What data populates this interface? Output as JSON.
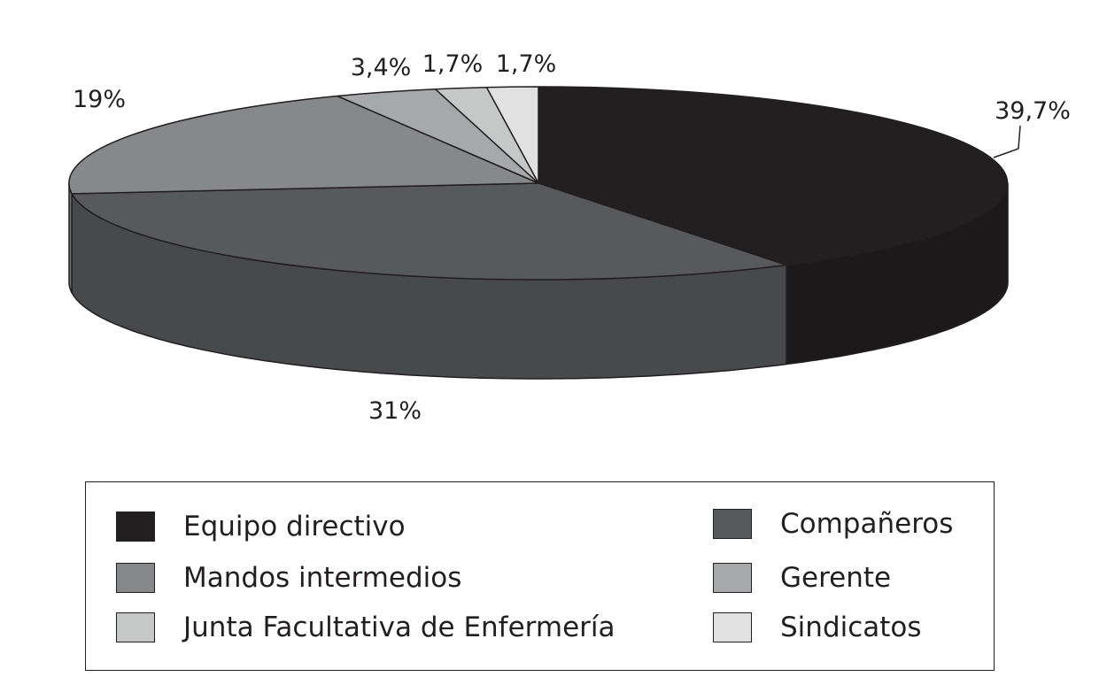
{
  "chart_data": {
    "type": "pie",
    "three_d": true,
    "unit": "%",
    "slices": [
      {
        "label": "Equipo directivo",
        "value": 39.7,
        "value_label": "39,7%",
        "color": "#221f20"
      },
      {
        "label": "Compañeros",
        "value": 31,
        "value_label": "31%",
        "color": "#58595b"
      },
      {
        "label": "Mandos intermedios",
        "value": 19,
        "value_label": "19%",
        "color": "#87888a"
      },
      {
        "label": "Gerente",
        "value": 3.4,
        "value_label": "3,4%",
        "color": "#a7a8aa"
      },
      {
        "label": "Junta Facultativa de Enfermería",
        "value": 1.7,
        "value_label": "1,7%",
        "color": "#c6c8c8"
      },
      {
        "label": "Sindicatos",
        "value": 1.7,
        "value_label": "1,7%",
        "color": "#e1e1e1"
      }
    ],
    "legend": {
      "placement": "bottom",
      "entries": [
        {
          "label": "Equipo directivo",
          "color": "#221f20"
        },
        {
          "label": "Compañeros",
          "color": "#58595b"
        },
        {
          "label": "Mandos intermedios",
          "color": "#87888a"
        },
        {
          "label": "Gerente",
          "color": "#a7a8aa"
        },
        {
          "label": "Junta Facultativa de Enfermería",
          "color": "#c6c8c8"
        },
        {
          "label": "Sindicatos",
          "color": "#e1e1e1"
        }
      ]
    }
  }
}
